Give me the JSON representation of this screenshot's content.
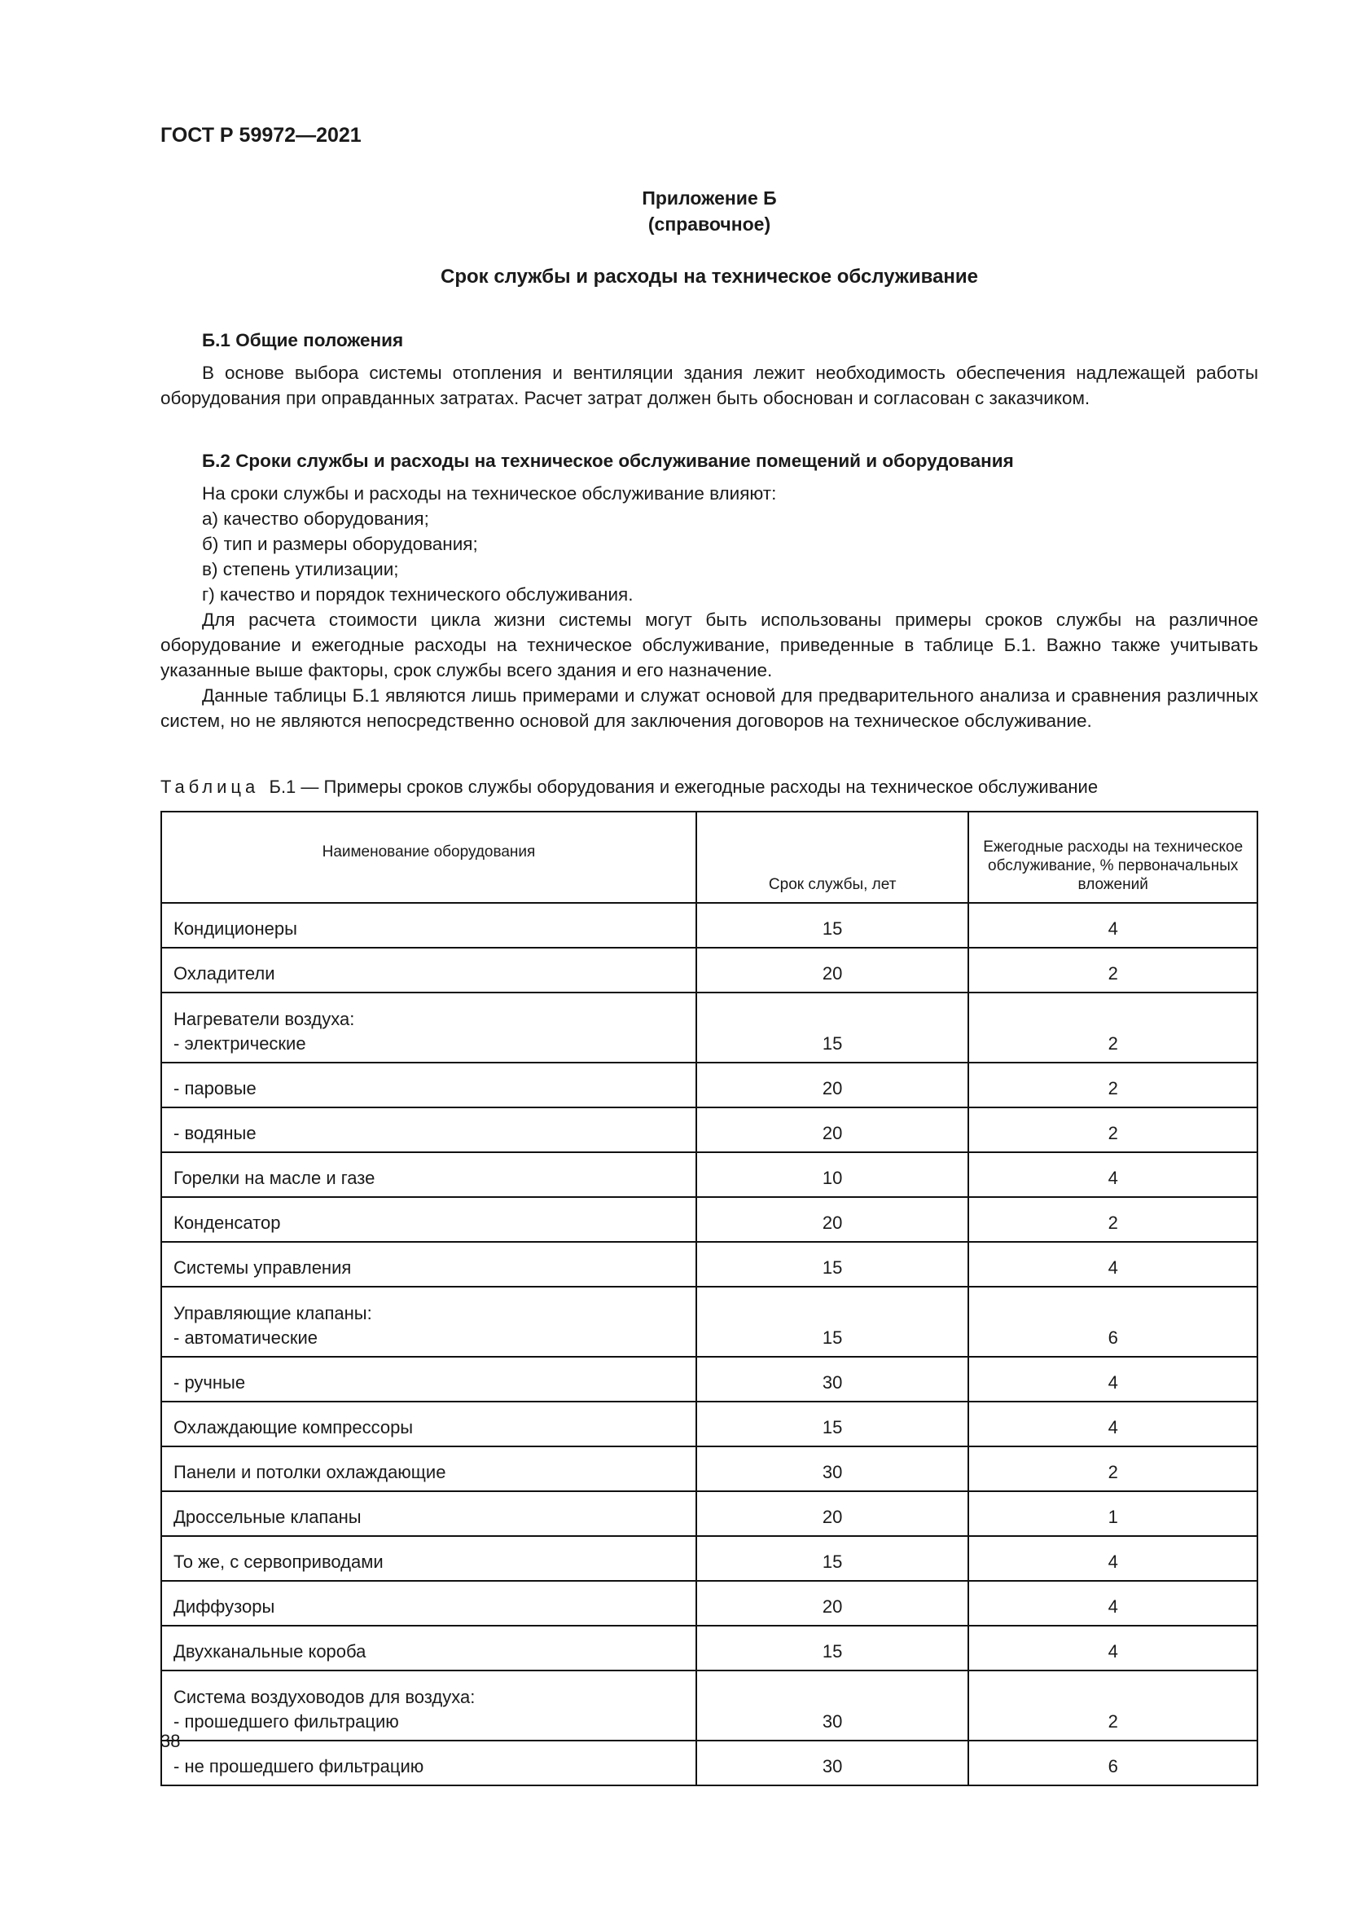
{
  "header": {
    "doc_id": "ГОСТ Р 59972—2021"
  },
  "appendix": {
    "title": "Приложение Б",
    "subtitle": "(справочное)",
    "heading": "Срок службы и расходы на техническое обслуживание"
  },
  "section1": {
    "heading": "Б.1 Общие положения",
    "text": "В основе выбора системы отопления и вентиляции здания лежит необходимость обеспечения надлежащей работы оборудования при оправданных затратах. Расчет затрат должен быть обоснован и согласован с заказчиком."
  },
  "section2": {
    "heading": "Б.2 Сроки службы и расходы на техническое обслуживание помещений и оборудования",
    "intro": "На сроки службы и расходы на техническое обслуживание влияют:",
    "items": [
      "а)  качество оборудования;",
      "б)  тип и размеры оборудования;",
      "в)  степень утилизации;",
      "г)  качество и порядок технического обслуживания."
    ],
    "para1": "Для расчета стоимости цикла жизни системы могут быть использованы примеры сроков службы на различное оборудование и ежегодные расходы на техническое обслуживание, приведенные в таблице Б.1. Важно также учитывать указанные выше факторы, срок службы всего здания и его назначение.",
    "para2": "Данные таблицы Б.1 являются лишь примерами и служат основой для предварительного анализа и сравнения различных систем, но не являются непосредственно основой для заключения договоров на техническое обслуживание."
  },
  "table": {
    "caption_label": "Таблица",
    "caption_text": "Б.1 — Примеры сроков службы оборудования и ежегодные расходы на техническое обслуживание",
    "headers": [
      "Наименование оборудования",
      "Срок службы, лет",
      "Ежегодные расходы на техническое обслуживание, % первоначальных вложений"
    ],
    "rows": [
      {
        "group": "",
        "name": "Кондиционеры",
        "life": "15",
        "cost": "4"
      },
      {
        "group": "",
        "name": "Охладители",
        "life": "20",
        "cost": "2"
      },
      {
        "group": "Нагреватели воздуха:",
        "name": "-  электрические",
        "life": "15",
        "cost": "2"
      },
      {
        "group": "",
        "name": "-  паровые",
        "life": "20",
        "cost": "2"
      },
      {
        "group": "",
        "name": "-  водяные",
        "life": "20",
        "cost": "2"
      },
      {
        "group": "",
        "name": "Горелки на масле и газе",
        "life": "10",
        "cost": "4"
      },
      {
        "group": "",
        "name": "Конденсатор",
        "life": "20",
        "cost": "2"
      },
      {
        "group": "",
        "name": "Системы управления",
        "life": "15",
        "cost": "4"
      },
      {
        "group": "Управляющие клапаны:",
        "name": "-  автоматические",
        "life": "15",
        "cost": "6"
      },
      {
        "group": "",
        "name": "-  ручные",
        "life": "30",
        "cost": "4"
      },
      {
        "group": "",
        "name": "Охлаждающие компрессоры",
        "life": "15",
        "cost": "4"
      },
      {
        "group": "",
        "name": "Панели и потолки охлаждающие",
        "life": "30",
        "cost": "2"
      },
      {
        "group": "",
        "name": "Дроссельные клапаны",
        "life": "20",
        "cost": "1"
      },
      {
        "group": "",
        "name": "То же, с сервоприводами",
        "life": "15",
        "cost": "4"
      },
      {
        "group": "",
        "name": "Диффузоры",
        "life": "20",
        "cost": "4"
      },
      {
        "group": "",
        "name": "Двухканальные короба",
        "life": "15",
        "cost": "4"
      },
      {
        "group": "Система воздуховодов для воздуха:",
        "name": "-  прошедшего фильтрацию",
        "life": "30",
        "cost": "2"
      },
      {
        "group": "",
        "name": "-  не прошедшего фильтрацию",
        "life": "30",
        "cost": "6"
      }
    ]
  },
  "footer": {
    "page_number": "38"
  }
}
